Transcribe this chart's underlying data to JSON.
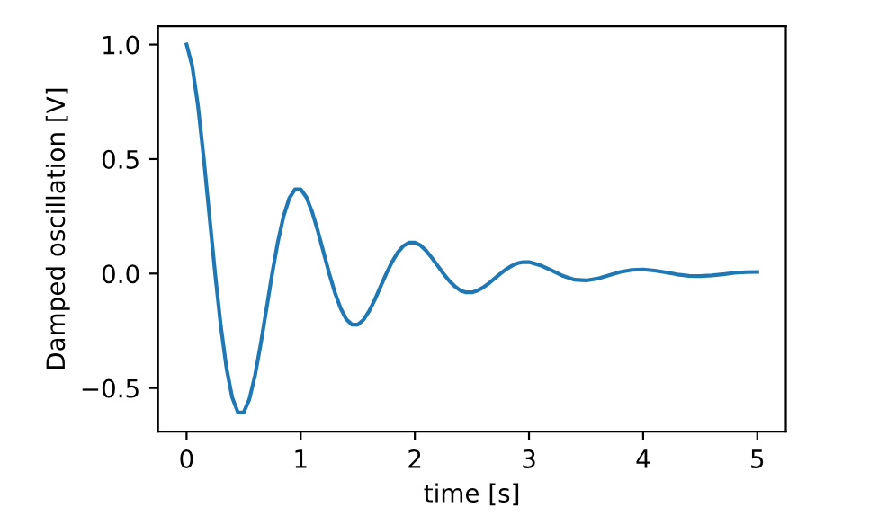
{
  "chart_data": {
    "type": "line",
    "xlabel": "time [s]",
    "ylabel": "Damped oscillation [V]",
    "xlim": [
      -0.25,
      5.25
    ],
    "xticks": [
      0,
      1,
      2,
      3,
      4,
      5
    ],
    "ylim": [
      -0.69,
      1.08
    ],
    "yticks": [
      {
        "value": -0.5,
        "label": "−0.5"
      },
      {
        "value": 0,
        "label": "0.0"
      },
      {
        "value": 0.5,
        "label": "0.5"
      },
      {
        "value": 1,
        "label": "1.0"
      }
    ],
    "grid": false,
    "marker": "none",
    "line_style": "solid",
    "series": [
      {
        "color": "#1f77b4",
        "x": [
          0,
          0.05,
          0.1,
          0.15,
          0.2,
          0.25,
          0.3,
          0.35,
          0.4,
          0.45,
          0.5,
          0.55,
          0.6,
          0.65,
          0.7,
          0.75,
          0.8,
          0.85,
          0.9,
          0.95,
          1.0,
          1.05,
          1.1,
          1.15,
          1.2,
          1.25,
          1.3,
          1.35,
          1.4,
          1.45,
          1.5,
          1.55,
          1.6,
          1.65,
          1.7,
          1.75,
          1.8,
          1.85,
          1.9,
          1.95,
          2.0,
          2.05,
          2.1,
          2.15,
          2.2,
          2.25,
          2.3,
          2.35,
          2.4,
          2.45,
          2.5,
          2.55,
          2.6,
          2.65,
          2.7,
          2.75,
          2.8,
          2.85,
          2.9,
          2.95,
          3.0,
          3.1,
          3.2,
          3.3,
          3.4,
          3.5,
          3.6,
          3.7,
          3.8,
          3.9,
          4.0,
          4.1,
          4.2,
          4.3,
          4.4,
          4.5,
          4.6,
          4.7,
          4.8,
          4.9,
          5.0
        ],
        "values": [
          1,
          0.905,
          0.732,
          0.506,
          0.253,
          0,
          -0.229,
          -0.414,
          -0.542,
          -0.606,
          -0.607,
          -0.549,
          -0.444,
          -0.307,
          -0.154,
          0,
          0.139,
          0.251,
          0.329,
          0.368,
          0.368,
          0.333,
          0.269,
          0.186,
          0.093,
          0,
          -0.084,
          -0.152,
          -0.2,
          -0.223,
          -0.223,
          -0.202,
          -0.163,
          -0.113,
          -0.056,
          0,
          0.051,
          0.092,
          0.121,
          0.135,
          0.135,
          0.123,
          0.099,
          0.068,
          0.034,
          0,
          -0.031,
          -0.056,
          -0.074,
          -0.082,
          -0.082,
          -0.074,
          -0.06,
          -0.042,
          -0.021,
          0,
          0.019,
          0.034,
          0.045,
          0.05,
          0.05,
          0.036,
          0.013,
          -0.011,
          -0.027,
          -0.03,
          -0.022,
          -0.008,
          0.007,
          0.016,
          0.018,
          0.013,
          0.005,
          -0.004,
          -0.01,
          -0.011,
          -0.008,
          -0.003,
          0.003,
          0.006,
          0.007
        ]
      }
    ]
  }
}
